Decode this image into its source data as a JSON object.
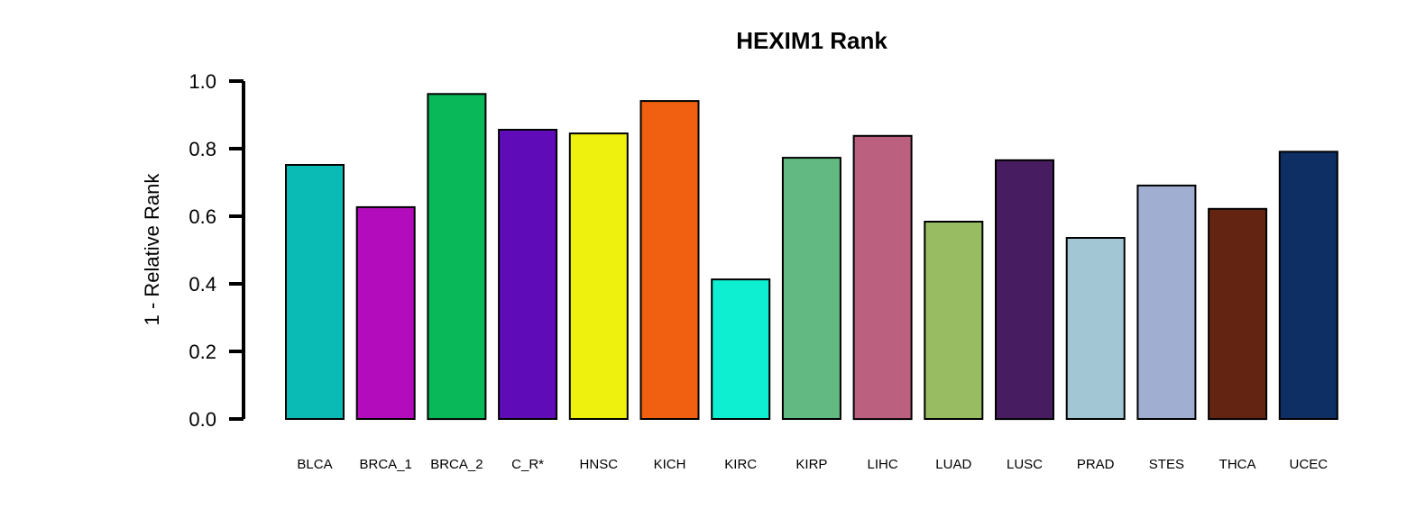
{
  "chart_data": {
    "type": "bar",
    "title": "HEXIM1 Rank",
    "xlabel": "",
    "ylabel": "1 - Relative Rank",
    "ylim": [
      0,
      1
    ],
    "yticks": [
      "0.0",
      "0.2",
      "0.4",
      "0.6",
      "0.8",
      "1.0"
    ],
    "categories": [
      "BLCA",
      "BRCA_1",
      "BRCA_2",
      "C_R*",
      "HNSC",
      "KICH",
      "KIRC",
      "KIRP",
      "LIHC",
      "LUAD",
      "LUSC",
      "PRAD",
      "STES",
      "THCA",
      "UCEC"
    ],
    "values": [
      0.752,
      0.627,
      0.962,
      0.856,
      0.845,
      0.941,
      0.413,
      0.773,
      0.838,
      0.584,
      0.766,
      0.536,
      0.691,
      0.622,
      0.791
    ],
    "colors": [
      "#0ABAB5",
      "#B20CBC",
      "#08B859",
      "#5F0BB8",
      "#EEF00D",
      "#F15F10",
      "#0EEED0",
      "#62BA82",
      "#BC6080",
      "#98BC62",
      "#481C60",
      "#A2C6D4",
      "#A0AED2",
      "#632512",
      "#0E2F63"
    ],
    "grid": false,
    "legend": "none"
  }
}
